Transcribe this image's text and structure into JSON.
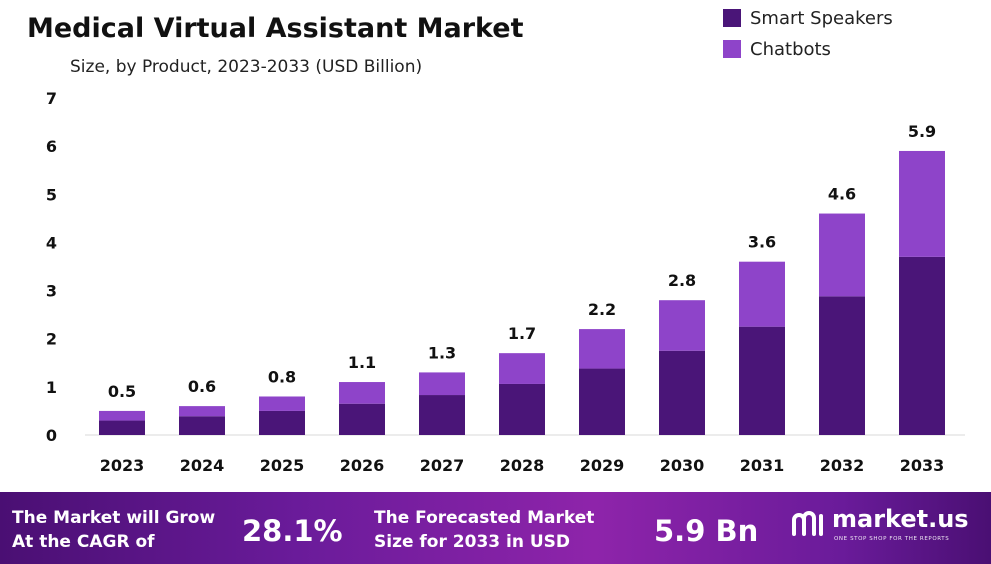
{
  "chart_data": {
    "type": "bar",
    "stacked": true,
    "title": "Medical Virtual Assistant Market",
    "subtitle": "Size, by Product, 2023-2033 (USD Billion)",
    "categories": [
      "2023",
      "2024",
      "2025",
      "2026",
      "2027",
      "2028",
      "2029",
      "2030",
      "2031",
      "2032",
      "2033"
    ],
    "totals": [
      "0.5",
      "0.6",
      "0.8",
      "1.1",
      "1.3",
      "1.7",
      "2.2",
      "2.8",
      "3.6",
      "4.6",
      "5.9"
    ],
    "series": [
      {
        "name": "Smart Speakers",
        "color": "#4a1578",
        "values": [
          0.3,
          0.39,
          0.5,
          0.65,
          0.83,
          1.06,
          1.38,
          1.75,
          2.25,
          2.88,
          3.7
        ]
      },
      {
        "name": "Chatbots",
        "color": "#8e44c9",
        "values": [
          0.2,
          0.21,
          0.3,
          0.45,
          0.47,
          0.64,
          0.82,
          1.05,
          1.35,
          1.72,
          2.2
        ]
      }
    ],
    "yticks": [
      "0",
      "1",
      "2",
      "3",
      "4",
      "5",
      "6",
      "7"
    ],
    "ylim": [
      0,
      7
    ],
    "legend_position": "top-right"
  },
  "footer": {
    "cagr_line1": "The Market will Grow",
    "cagr_line2": "At the CAGR of",
    "cagr_value": "28.1%",
    "forecast_line1": "The Forecasted Market",
    "forecast_line2": "Size for 2033 in USD",
    "forecast_value": "5.9 Bn",
    "logo_text": "market.us",
    "logo_tagline": "ONE STOP SHOP FOR THE REPORTS"
  }
}
